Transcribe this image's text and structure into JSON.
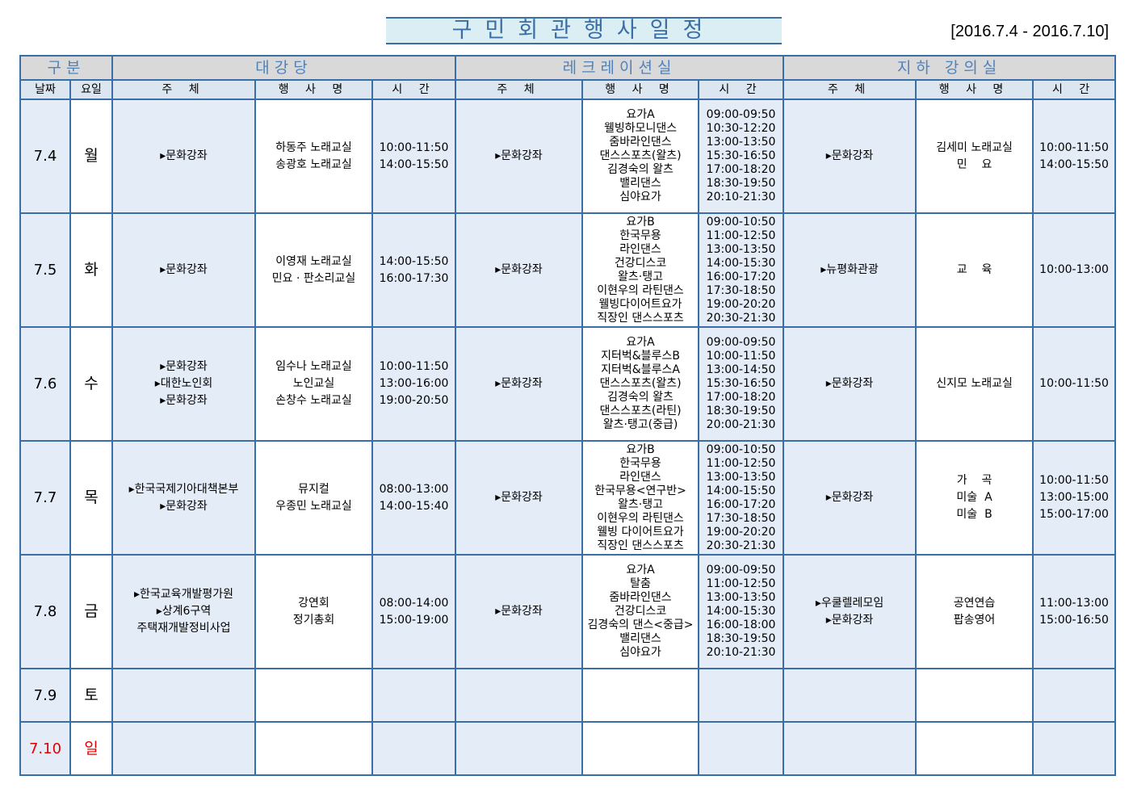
{
  "title": "구민회관행사일정",
  "date_range": "[2016.7.4 - 2016.7.10]",
  "colors": {
    "border": "#3b6ea5",
    "header_bg": "#d9d9d9",
    "subheader_bg": "#dce6f1",
    "cell_bg": "#e4ecf7",
    "weekend": "#e00000"
  },
  "headers": {
    "category": "구분",
    "halls": [
      "대강당",
      "레크레이션실",
      "지하 강의실"
    ],
    "date": "날짜",
    "day": "요일",
    "organizer": "주 체",
    "event": "행 사 명",
    "time": "시 간"
  },
  "rows": [
    {
      "date": "7.4",
      "day": "월",
      "cells": [
        [
          "▸문화강좌"
        ],
        [
          "하동주 노래교실",
          "송광호 노래교실"
        ],
        [
          "10:00-11:50",
          "14:00-15:50"
        ],
        [
          "▸문화강좌"
        ],
        [
          "요가A",
          "웰빙하모니댄스",
          "줌바라인댄스",
          "댄스스포츠(왈츠)",
          "김경숙의 왈츠",
          "밸리댄스",
          "심야요가"
        ],
        [
          "09:00-09:50",
          "10:30-12:20",
          "13:00-13:50",
          "15:30-16:50",
          "17:00-18:20",
          "18:30-19:50",
          "20:10-21:30"
        ],
        [
          "▸문화강좌"
        ],
        [
          "김세미 노래교실",
          "민    요"
        ],
        [
          "10:00-11:50",
          "14:00-15:50"
        ]
      ]
    },
    {
      "date": "7.5",
      "day": "화",
      "cells": [
        [
          "▸문화강좌"
        ],
        [
          "이영재 노래교실",
          "민요 · 판소리교실"
        ],
        [
          "14:00-15:50",
          "16:00-17:30"
        ],
        [
          "▸문화강좌"
        ],
        [
          "요가B",
          "한국무용",
          "라인댄스",
          "건강디스코",
          "왈츠·탱고",
          "이현우의 라틴댄스",
          "웰빙다이어트요가",
          "직장인 댄스스포츠"
        ],
        [
          "09:00-10:50",
          "11:00-12:50",
          "13:00-13:50",
          "14:00-15:30",
          "16:00-17:20",
          "17:30-18:50",
          "19:00-20:20",
          "20:30-21:30"
        ],
        [
          "▸뉴평화관광"
        ],
        [
          "교    육"
        ],
        [
          "10:00-13:00"
        ]
      ]
    },
    {
      "date": "7.6",
      "day": "수",
      "cells": [
        [
          "▸문화강좌",
          "▸대한노인회",
          "▸문화강좌"
        ],
        [
          "임수나 노래교실",
          "노인교실",
          "손창수 노래교실"
        ],
        [
          "10:00-11:50",
          "13:00-16:00",
          "19:00-20:50"
        ],
        [
          "▸문화강좌"
        ],
        [
          "요가A",
          "지터벅&블루스B",
          "지터벅&블루스A",
          "댄스스포츠(왈츠)",
          "김경숙의 왈츠",
          "댄스스포츠(라틴)",
          "왈츠·탱고(중급)"
        ],
        [
          "09:00-09:50",
          "10:00-11:50",
          "13:00-14:50",
          "15:30-16:50",
          "17:00-18:20",
          "18:30-19:50",
          "20:00-21:30"
        ],
        [
          "▸문화강좌"
        ],
        [
          "신지모 노래교실"
        ],
        [
          "10:00-11:50"
        ]
      ]
    },
    {
      "date": "7.7",
      "day": "목",
      "cells": [
        [
          "▸한국국제기아대책본부",
          "▸문화강좌"
        ],
        [
          "뮤지컬",
          "우종민 노래교실"
        ],
        [
          "08:00-13:00",
          "14:00-15:40"
        ],
        [
          "▸문화강좌"
        ],
        [
          "요가B",
          "한국무용",
          "라인댄스",
          "한국무용<연구반>",
          "왈츠·탱고",
          "이현우의 라틴댄스",
          "웰빙 다이어트요가",
          "직장인 댄스스포츠"
        ],
        [
          "09:00-10:50",
          "11:00-12:50",
          "13:00-13:50",
          "14:00-15:50",
          "16:00-17:20",
          "17:30-18:50",
          "19:00-20:20",
          "20:30-21:30"
        ],
        [
          "▸문화강좌"
        ],
        [
          "가    곡",
          "미술  A",
          "미술  B"
        ],
        [
          "10:00-11:50",
          "13:00-15:00",
          "15:00-17:00"
        ]
      ]
    },
    {
      "date": "7.8",
      "day": "금",
      "cells": [
        [
          "▸한국교육개발평가원",
          "▸상계6구역",
          "주택재개발정비사업"
        ],
        [
          "강연회",
          "정기총회"
        ],
        [
          "08:00-14:00",
          "15:00-19:00"
        ],
        [
          "▸문화강좌"
        ],
        [
          "요가A",
          "탈춤",
          "줌바라인댄스",
          "건강디스코",
          "김경숙의 댄스<중급>",
          "밸리댄스",
          "심야요가"
        ],
        [
          "09:00-09:50",
          "11:00-12:50",
          "13:00-13:50",
          "14:00-15:30",
          "16:00-18:00",
          "18:30-19:50",
          "20:10-21:30"
        ],
        [
          "▸우쿨렐레모임",
          "▸문화강좌"
        ],
        [
          "공연연습",
          "팝송영어"
        ],
        [
          "11:00-13:00",
          "15:00-16:50"
        ]
      ]
    },
    {
      "date": "7.9",
      "day": "토",
      "cells": [
        [],
        [],
        [],
        [],
        [],
        [],
        [],
        [],
        []
      ]
    },
    {
      "date": "7.10",
      "day": "일",
      "weekend": true,
      "cells": [
        [],
        [],
        [],
        [],
        [],
        [],
        [],
        [],
        []
      ]
    }
  ]
}
